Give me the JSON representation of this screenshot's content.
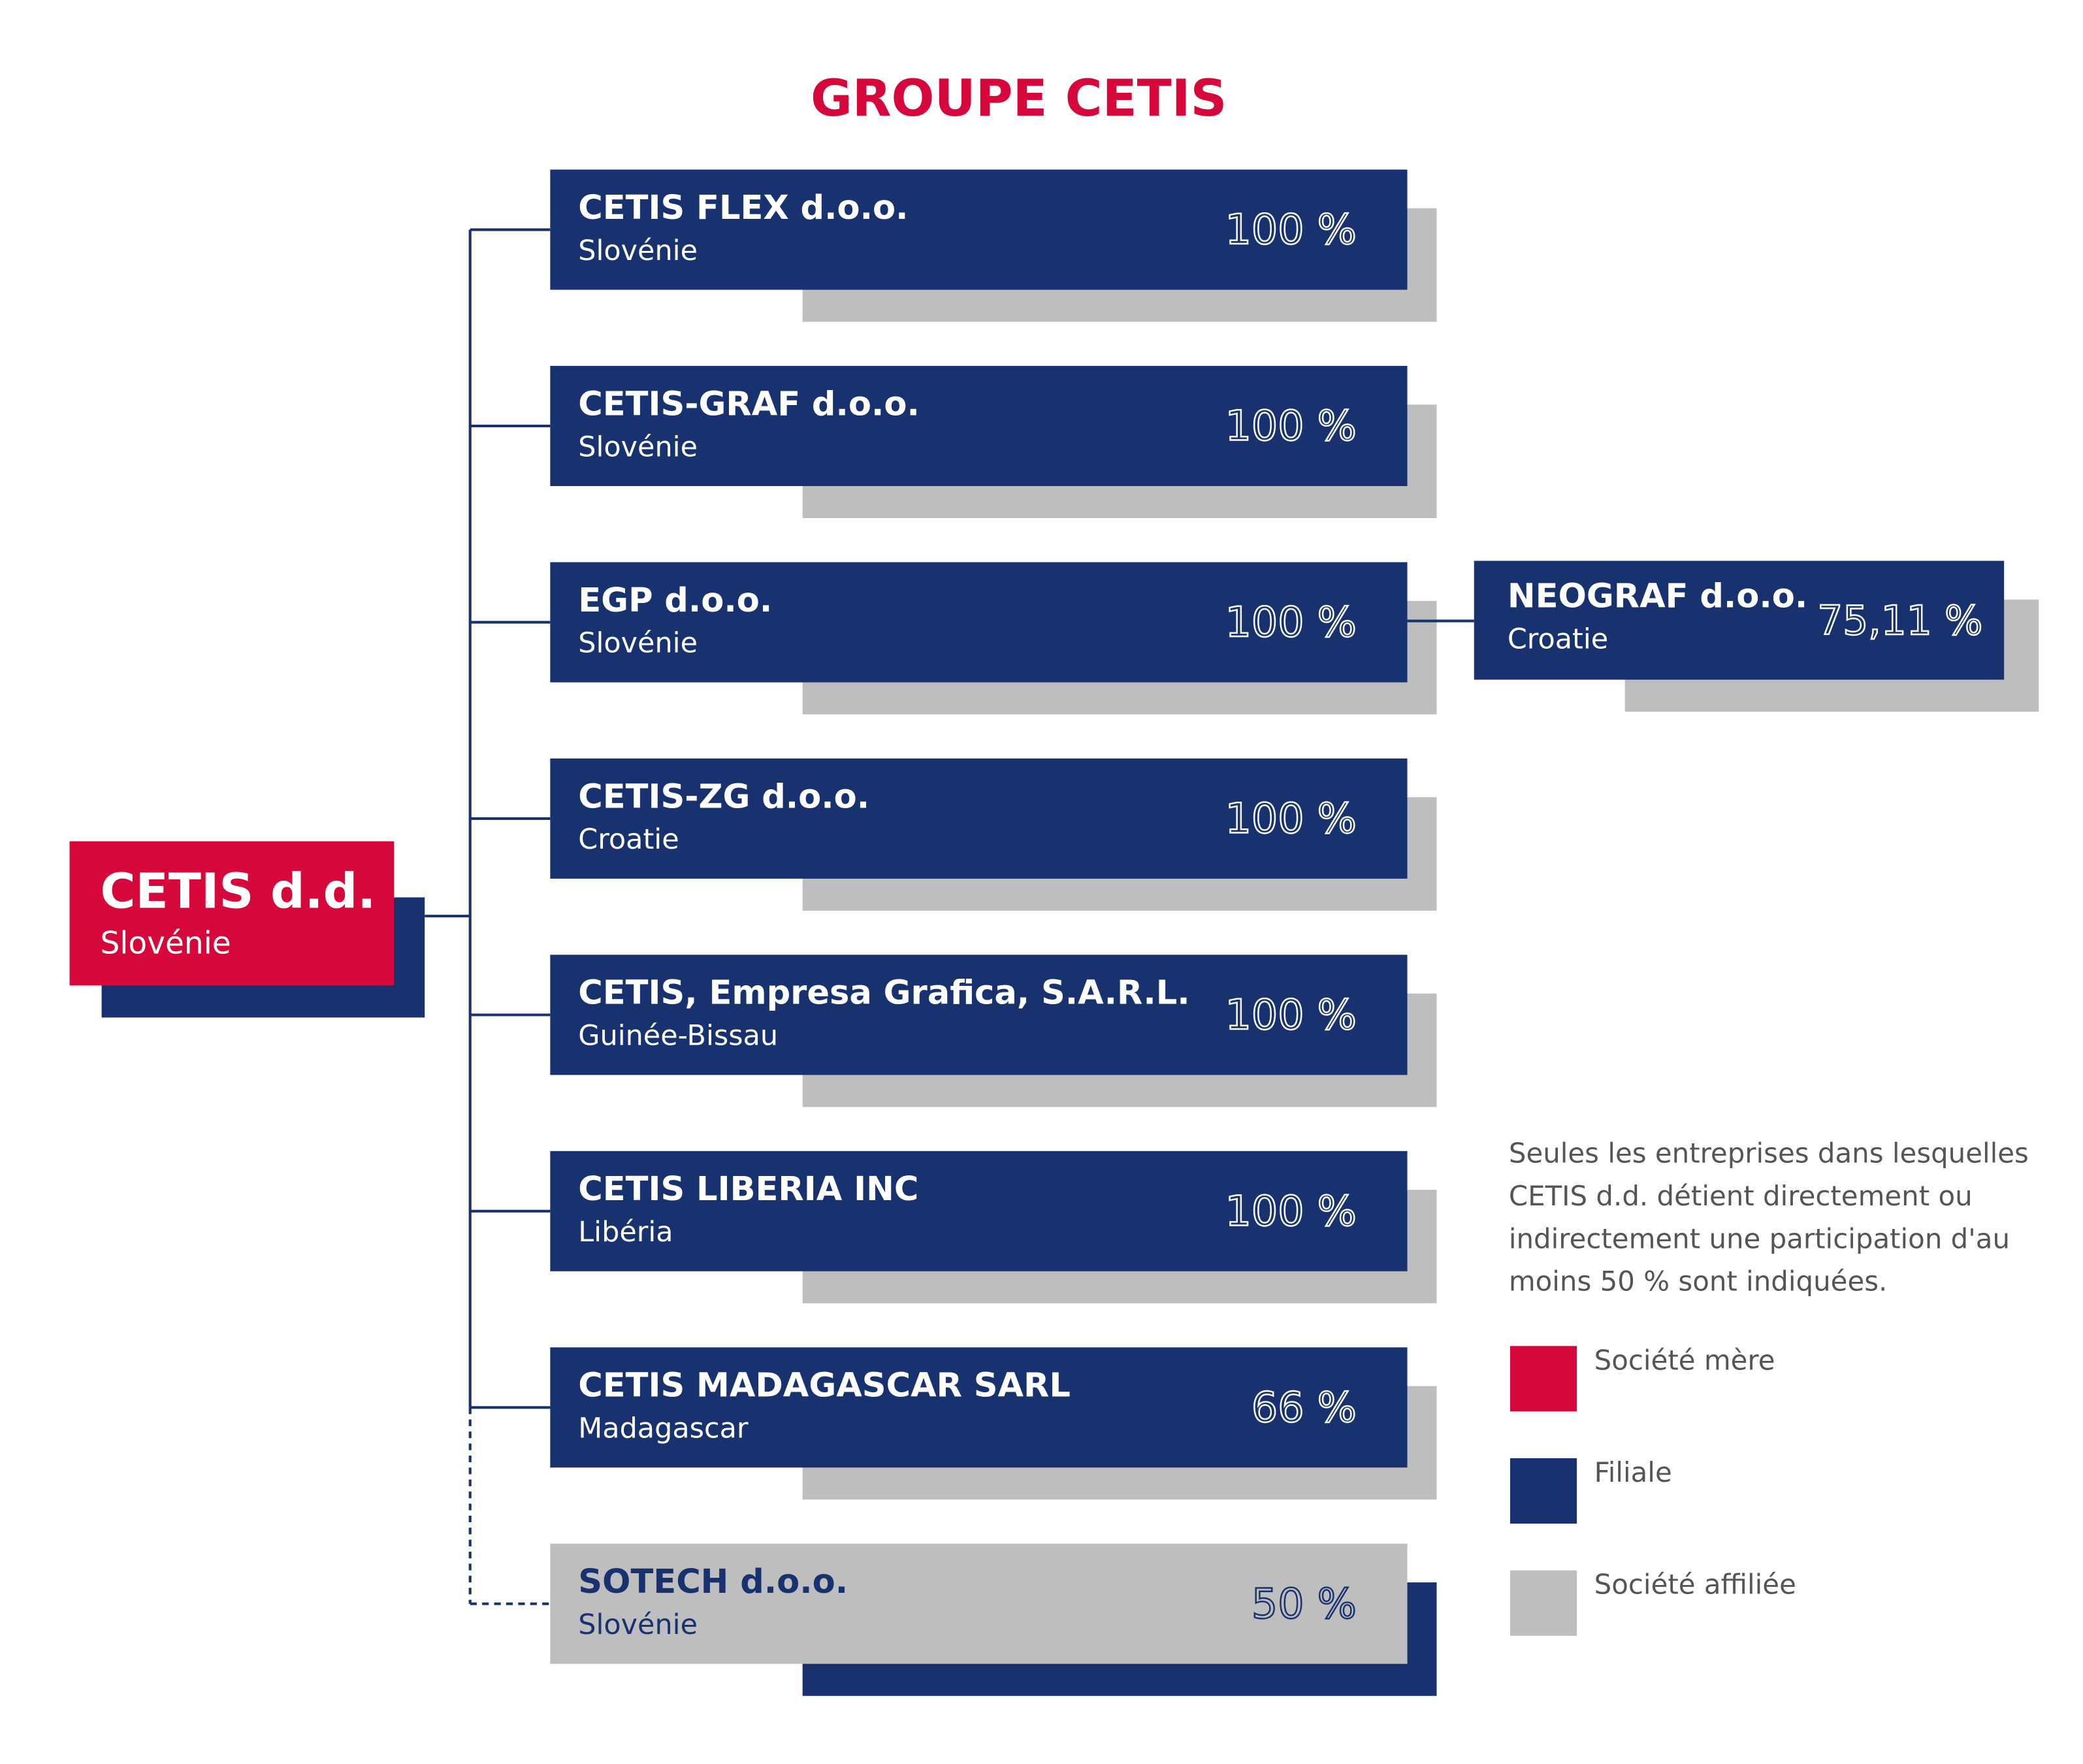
{
  "title": "GROUPE CETIS",
  "parent": {
    "name": "CETIS d.d.",
    "country": "Slovénie"
  },
  "subsidiaries": [
    {
      "name": "CETIS FLEX d.o.o.",
      "country": "Slovénie",
      "share": "100 %"
    },
    {
      "name": "CETIS-GRAF d.o.o.",
      "country": "Slovénie",
      "share": "100 %"
    },
    {
      "name": "EGP d.o.o.",
      "country": "Slovénie",
      "share": "100 %"
    },
    {
      "name": "CETIS-ZG d.o.o.",
      "country": "Croatie",
      "share": "100 %"
    },
    {
      "name": "CETIS, Empresa Grafica, S.A.R.L.",
      "country": "Guinée-Bissau",
      "share": "100 %"
    },
    {
      "name": "CETIS LIBERIA INC",
      "country": "Libéria",
      "share": "100 %"
    },
    {
      "name": "CETIS MADAGASCAR SARL",
      "country": "Madagascar",
      "share": "66 %"
    },
    {
      "name": "SOTECH d.o.o.",
      "country": "Slovénie",
      "share": "50 %"
    }
  ],
  "sub_subsidiary": {
    "name": "NEOGRAF d.o.o.",
    "country": "Croatie",
    "share": "75,11 %"
  },
  "note": [
    "Seules les entreprises dans lesquelles",
    "CETIS d.d. détient directement ou",
    "indirectement une participation d'au",
    "moins 50 % sont indiquées."
  ],
  "legend": [
    "Société mère",
    "Filiale",
    "Société affiliée"
  ]
}
